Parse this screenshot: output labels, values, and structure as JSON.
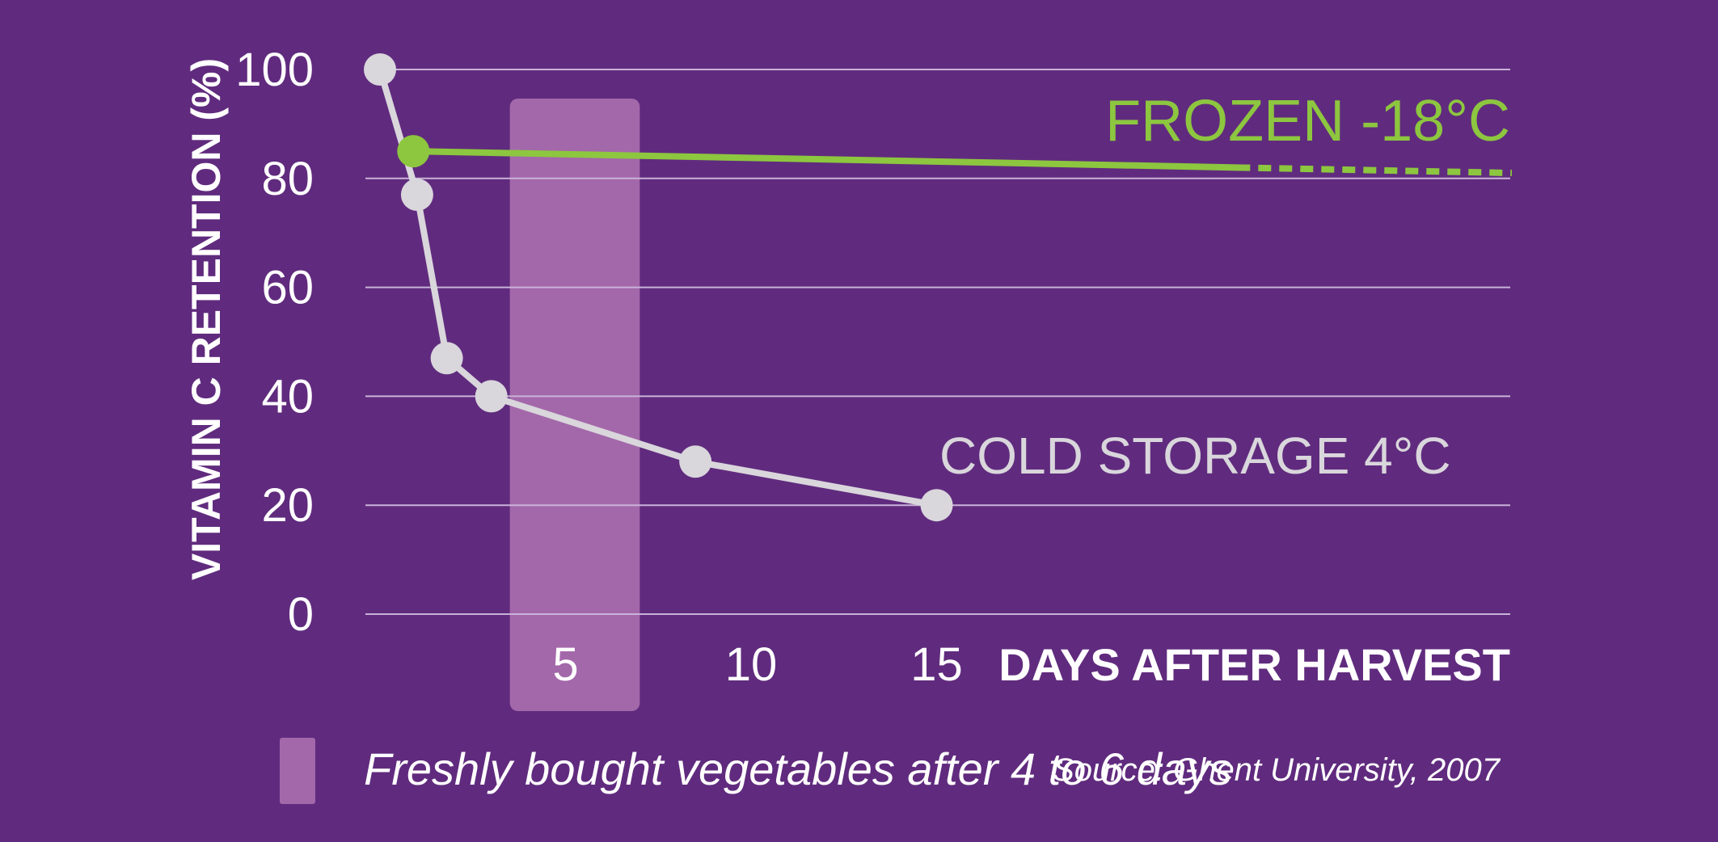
{
  "chart_data": {
    "type": "line",
    "xlabel": "DAYS AFTER HARVEST",
    "ylabel": "VITAMIN C RETENTION (%)",
    "xlim": [
      0,
      30.5
    ],
    "ylim": [
      0,
      100
    ],
    "x_ticks": [
      {
        "value": 5,
        "label": "5"
      },
      {
        "value": 10,
        "label": "10"
      },
      {
        "value": 15,
        "label": "15"
      }
    ],
    "y_ticks": [
      {
        "value": 0,
        "label": "0"
      },
      {
        "value": 20,
        "label": "20"
      },
      {
        "value": 40,
        "label": "40"
      },
      {
        "value": 60,
        "label": "60"
      },
      {
        "value": 80,
        "label": "80"
      },
      {
        "value": 100,
        "label": "100"
      }
    ],
    "grid": true,
    "highlight_band": {
      "x_range": [
        3.5,
        7
      ],
      "label": "Freshly bought vegetables after 4 to 6 days",
      "color": "#a368aa"
    },
    "series": [
      {
        "name": "COLD STORAGE 4°C",
        "color": "#d9d6dc",
        "x": [
          0,
          1,
          1.8,
          3,
          8.5,
          15
        ],
        "y": [
          100,
          77,
          47,
          40,
          28,
          20
        ]
      },
      {
        "name": "FROZEN -18°C",
        "color": "#8dc63f",
        "x": [
          0.9,
          23.1,
          30.5
        ],
        "y": [
          85,
          82,
          81
        ],
        "markers": [
          true,
          false,
          false
        ],
        "dashed_from_index": 1
      }
    ]
  },
  "source": "Source: Ghent University, 2007"
}
